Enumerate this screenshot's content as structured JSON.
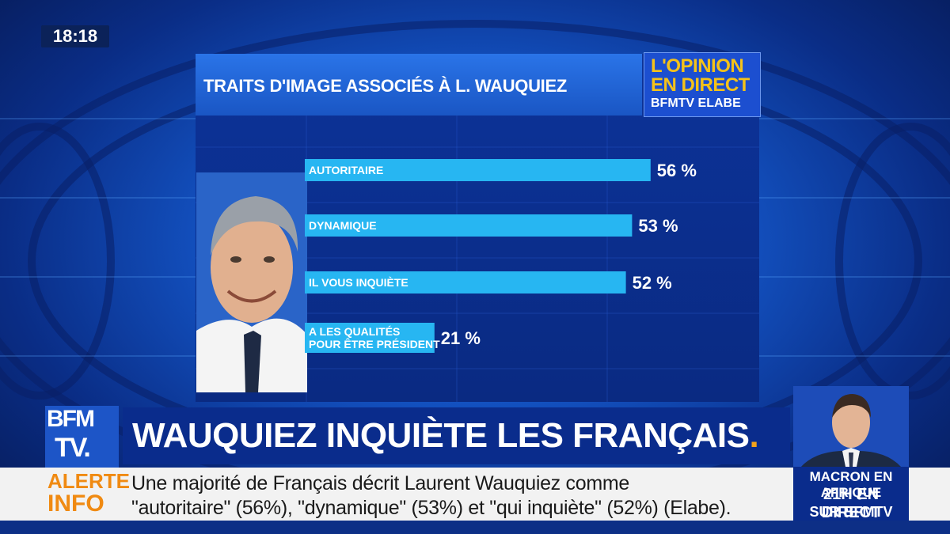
{
  "clock": "18:18",
  "panel": {
    "title": "TRAITS D'IMAGE ASSOCIÉS À L. WAUQUIEZ",
    "logo_line1": "L'OPINION",
    "logo_line2": "EN DIRECT",
    "logo_line3": "BFMTV ELABE"
  },
  "chart_data": {
    "type": "bar",
    "orientation": "horizontal",
    "title": "TRAITS D'IMAGE ASSOCIÉS À L. WAUQUIEZ",
    "categories": [
      "AUTORITAIRE",
      "DYNAMIQUE",
      "IL VOUS INQUIÈTE",
      "A LES QUALITÉS POUR ÊTRE PRÉSIDENT"
    ],
    "category_lines": [
      [
        "AUTORITAIRE"
      ],
      [
        "DYNAMIQUE"
      ],
      [
        "IL VOUS INQUIÈTE"
      ],
      [
        "A LES QUALITÉS",
        "POUR ÊTRE PRÉSIDENT"
      ]
    ],
    "values": [
      56,
      53,
      52,
      21
    ],
    "value_labels": [
      "56 %",
      "53 %",
      "52 %",
      "21 %"
    ],
    "unit": "%",
    "xlim": [
      0,
      100
    ],
    "bar_color": "#27b6f2"
  },
  "lower_third": {
    "channel_logo_top": "BFM",
    "channel_logo_bottom": "TV.",
    "headline": "WAUQUIEZ INQUIÈTE LES FRANÇAIS",
    "headline_dot": "."
  },
  "ticker": {
    "label_line1": "ALERTE",
    "label_line2": "INFO",
    "text_line1": "Une majorité de Français décrit Laurent Wauquiez comme",
    "text_line2": "\"autoritaire\" (56%), \"dynamique\" (53%) et \"qui inquiète\" (52%) (Elabe)."
  },
  "promo": {
    "line1": "MACRON EN AFRIQUE",
    "line2": "21H EN DIRECT",
    "line3": "SUR BFMTV"
  },
  "colors": {
    "accent_orange": "#f08a12",
    "logo_yellow": "#f4c21a",
    "bar_blue": "#27b6f2",
    "panel_blue": "#0b2d8f"
  }
}
